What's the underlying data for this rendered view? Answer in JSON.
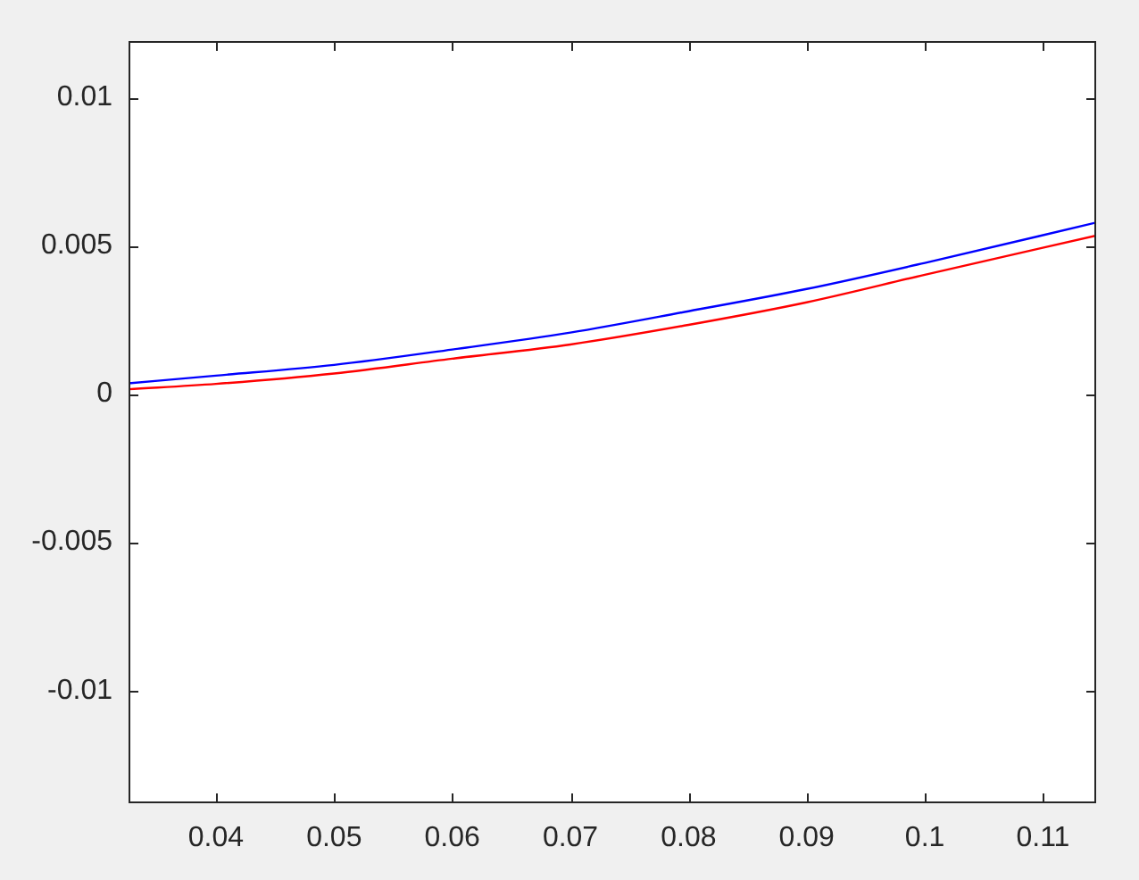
{
  "chart_data": {
    "type": "line",
    "x": [
      0.0326,
      0.04,
      0.05,
      0.06,
      0.07,
      0.08,
      0.09,
      0.1,
      0.1145
    ],
    "series": [
      {
        "color": "#0000ff",
        "values": [
          0.00036,
          0.00062,
          0.00098,
          0.0015,
          0.00207,
          0.00279,
          0.00354,
          0.00442,
          0.00578
        ]
      },
      {
        "color": "#ff0000",
        "values": [
          0.00016,
          0.00034,
          0.00069,
          0.00119,
          0.00167,
          0.00233,
          0.00309,
          0.00402,
          0.00534
        ]
      }
    ],
    "xlim": [
      0.0326,
      0.1145
    ],
    "ylim": [
      -0.0138,
      0.0119
    ],
    "xticks": [
      0.04,
      0.05,
      0.06,
      0.07,
      0.08,
      0.09,
      0.1,
      0.11
    ],
    "yticks": [
      -0.01,
      -0.005,
      0,
      0.005,
      0.01
    ],
    "marker": "none",
    "line_style": "solid"
  }
}
